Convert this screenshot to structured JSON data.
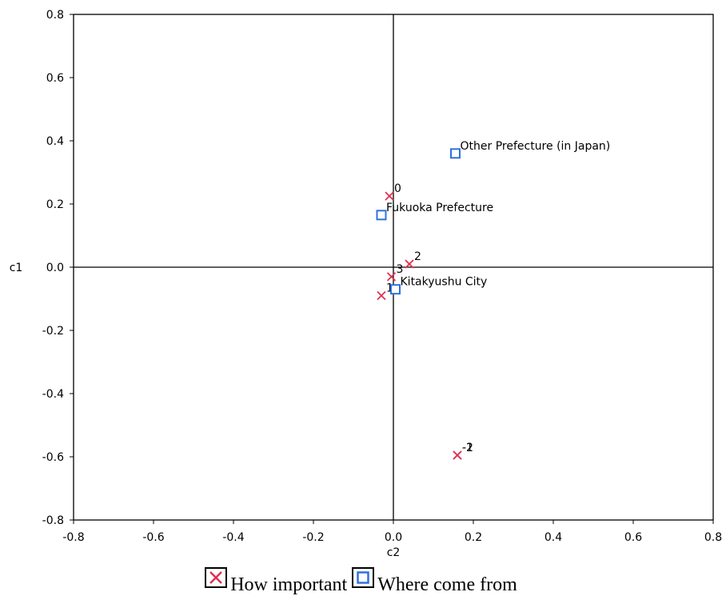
{
  "chart_data": {
    "type": "scatter",
    "xlabel": "c2",
    "ylabel": "c1",
    "xlim": [
      -0.8,
      0.8
    ],
    "ylim": [
      -0.8,
      0.8
    ],
    "x_ticks": [
      "-0.8",
      "-0.6",
      "-0.4",
      "-0.2",
      "0.0",
      "0.2",
      "0.4",
      "0.6",
      "0.8"
    ],
    "y_ticks": [
      "0.8",
      "0.6",
      "0.4",
      "0.2",
      "0.0",
      "-0.2",
      "-0.4",
      "-0.6",
      "-0.8"
    ],
    "grid": false,
    "reference_lines": {
      "x": 0,
      "y": 0
    },
    "legend_position": "bottom-center",
    "series": [
      {
        "name": "How important",
        "marker": "x",
        "color": "#e03050",
        "points": [
          {
            "label": "0",
            "x": -0.01,
            "y": 0.225
          },
          {
            "label": "2",
            "x": 0.04,
            "y": 0.01
          },
          {
            "label": "3",
            "x": -0.005,
            "y": -0.03
          },
          {
            "label": "1",
            "x": -0.03,
            "y": -0.09
          },
          {
            "label": "-1",
            "x": 0.16,
            "y": -0.595
          },
          {
            "label": "-2",
            "x": 0.16,
            "y": -0.595
          }
        ]
      },
      {
        "name": "Where come from",
        "marker": "square",
        "color": "#3070e0",
        "points": [
          {
            "label": "Other Prefecture (in Japan)",
            "x": 0.155,
            "y": 0.36
          },
          {
            "label": "Fukuoka Prefecture",
            "x": -0.03,
            "y": 0.165
          },
          {
            "label": "Kitakyushu City",
            "x": 0.005,
            "y": -0.07
          }
        ]
      }
    ]
  }
}
